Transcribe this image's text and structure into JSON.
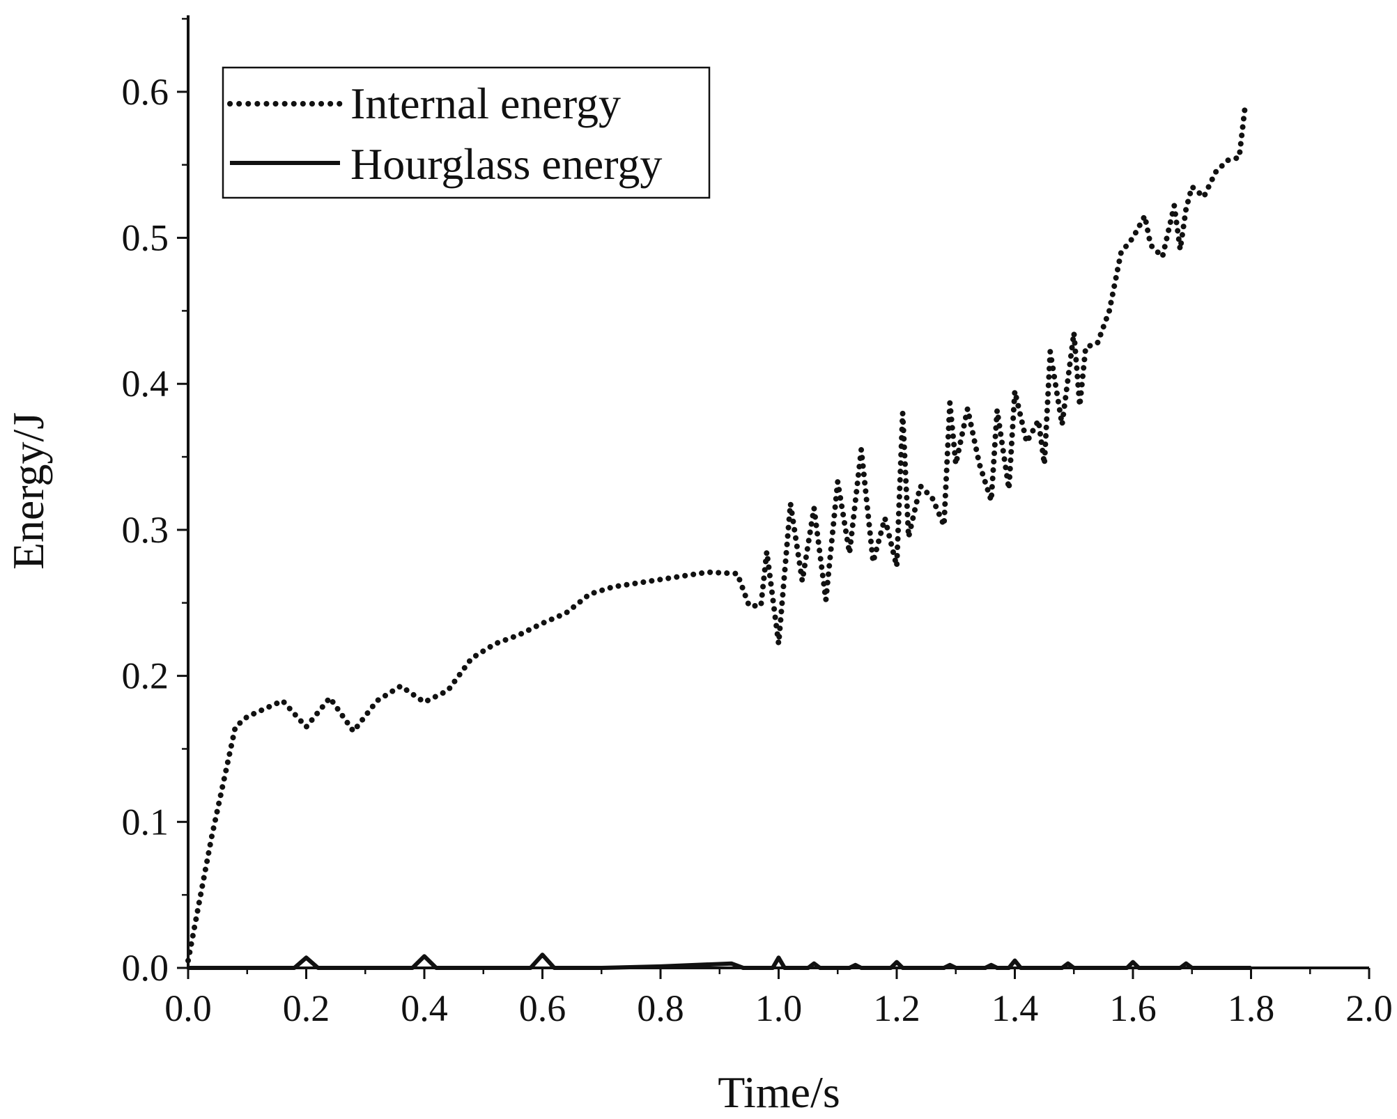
{
  "chart_data": {
    "type": "line",
    "title": "",
    "xlabel": "Time/s",
    "ylabel": "Energy/J",
    "xlim": [
      0.0,
      2.0
    ],
    "ylim": [
      0.0,
      0.65
    ],
    "grid": false,
    "legend_position": "top-left",
    "x_ticks": [
      "0.0",
      "0.2",
      "0.4",
      "0.6",
      "0.8",
      "1.0",
      "1.2",
      "1.4",
      "1.6",
      "1.8",
      "2.0"
    ],
    "y_ticks": [
      "0.0",
      "0.1",
      "0.2",
      "0.3",
      "0.4",
      "0.5",
      "0.6"
    ],
    "series": [
      {
        "name": "Internal energy",
        "style": "dotted",
        "color": "#111111",
        "x": [
          0.0,
          0.04,
          0.08,
          0.1,
          0.16,
          0.2,
          0.24,
          0.28,
          0.32,
          0.36,
          0.4,
          0.44,
          0.48,
          0.52,
          0.56,
          0.6,
          0.64,
          0.68,
          0.72,
          0.8,
          0.88,
          0.93,
          0.95,
          0.97,
          0.98,
          1.0,
          1.02,
          1.04,
          1.06,
          1.08,
          1.1,
          1.12,
          1.14,
          1.16,
          1.18,
          1.2,
          1.21,
          1.22,
          1.24,
          1.26,
          1.28,
          1.29,
          1.3,
          1.32,
          1.34,
          1.36,
          1.37,
          1.38,
          1.39,
          1.4,
          1.42,
          1.44,
          1.45,
          1.46,
          1.48,
          1.5,
          1.51,
          1.52,
          1.54,
          1.56,
          1.58,
          1.6,
          1.62,
          1.63,
          1.65,
          1.67,
          1.68,
          1.69,
          1.7,
          1.72,
          1.74,
          1.76,
          1.78,
          1.79
        ],
        "values": [
          0.005,
          0.09,
          0.165,
          0.172,
          0.183,
          0.165,
          0.185,
          0.162,
          0.183,
          0.193,
          0.182,
          0.19,
          0.212,
          0.222,
          0.228,
          0.236,
          0.243,
          0.256,
          0.261,
          0.266,
          0.271,
          0.27,
          0.248,
          0.248,
          0.285,
          0.222,
          0.318,
          0.265,
          0.315,
          0.252,
          0.333,
          0.284,
          0.355,
          0.278,
          0.308,
          0.275,
          0.38,
          0.295,
          0.33,
          0.322,
          0.303,
          0.387,
          0.345,
          0.383,
          0.345,
          0.32,
          0.382,
          0.355,
          0.328,
          0.395,
          0.36,
          0.375,
          0.345,
          0.422,
          0.372,
          0.435,
          0.385,
          0.425,
          0.428,
          0.45,
          0.49,
          0.5,
          0.515,
          0.495,
          0.487,
          0.522,
          0.492,
          0.52,
          0.535,
          0.528,
          0.545,
          0.553,
          0.555,
          0.59
        ]
      },
      {
        "name": "Hourglass energy",
        "style": "solid",
        "color": "#111111",
        "x": [
          0.0,
          0.18,
          0.2,
          0.22,
          0.38,
          0.4,
          0.42,
          0.58,
          0.6,
          0.62,
          0.7,
          0.8,
          0.92,
          0.94,
          0.99,
          1.0,
          1.01,
          1.05,
          1.06,
          1.07,
          1.12,
          1.13,
          1.14,
          1.19,
          1.2,
          1.21,
          1.28,
          1.29,
          1.3,
          1.35,
          1.36,
          1.37,
          1.39,
          1.4,
          1.41,
          1.48,
          1.49,
          1.5,
          1.59,
          1.6,
          1.61,
          1.68,
          1.69,
          1.7,
          1.8
        ],
        "values": [
          0.0,
          0.0,
          0.007,
          0.0,
          0.0,
          0.008,
          0.0,
          0.0,
          0.009,
          0.0,
          0.0,
          0.001,
          0.003,
          0.0,
          0.0,
          0.007,
          0.0,
          0.0,
          0.003,
          0.0,
          0.0,
          0.002,
          0.0,
          0.0,
          0.004,
          0.0,
          0.0,
          0.002,
          0.0,
          0.0,
          0.002,
          0.0,
          0.0,
          0.005,
          0.0,
          0.0,
          0.003,
          0.0,
          0.0,
          0.004,
          0.0,
          0.0,
          0.003,
          0.0,
          0.0
        ]
      }
    ]
  }
}
